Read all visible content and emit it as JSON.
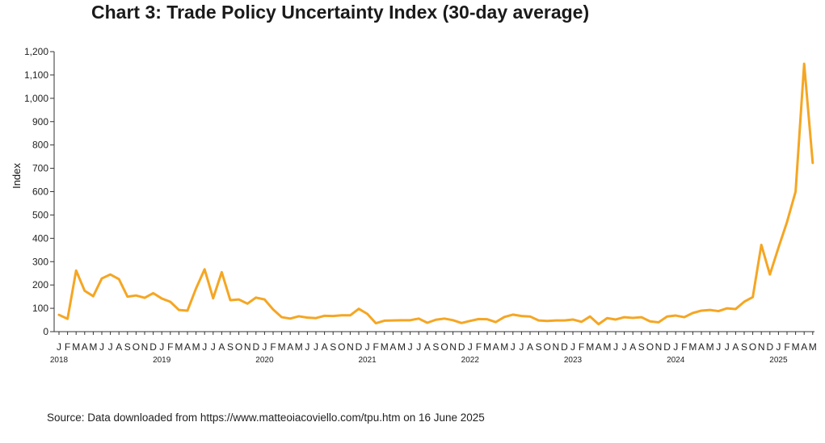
{
  "title": "Chart 3: Trade Policy Uncertainty Index (30-day average)",
  "source": "Source: Data downloaded from https://www.matteoiacoviello.com/tpu.htm on 16 June 2025",
  "chart_data": {
    "type": "line",
    "title": "Chart 3: Trade Policy Uncertainty Index (30-day average)",
    "xlabel": "",
    "ylabel": "Index",
    "ylim": [
      0,
      1200
    ],
    "yticks": [
      0,
      100,
      200,
      300,
      400,
      500,
      600,
      700,
      800,
      900,
      1000,
      1100,
      1200
    ],
    "ytick_labels": [
      "0",
      "100",
      "200",
      "300",
      "400",
      "500",
      "600",
      "700",
      "800",
      "900",
      "1,000",
      "1,100",
      "1,200"
    ],
    "grid": false,
    "line_color": "#F5A623",
    "month_letters": [
      "J",
      "F",
      "M",
      "A",
      "M",
      "J",
      "J",
      "A",
      "S",
      "O",
      "N",
      "D"
    ],
    "year_labels": [
      "2018",
      "2019",
      "2020",
      "2021",
      "2022",
      "2023",
      "2024",
      "2025"
    ],
    "x": [
      "2018-01",
      "2018-02",
      "2018-03",
      "2018-04",
      "2018-05",
      "2018-06",
      "2018-07",
      "2018-08",
      "2018-09",
      "2018-10",
      "2018-11",
      "2018-12",
      "2019-01",
      "2019-02",
      "2019-03",
      "2019-04",
      "2019-05",
      "2019-06",
      "2019-07",
      "2019-08",
      "2019-09",
      "2019-10",
      "2019-11",
      "2019-12",
      "2020-01",
      "2020-02",
      "2020-03",
      "2020-04",
      "2020-05",
      "2020-06",
      "2020-07",
      "2020-08",
      "2020-09",
      "2020-10",
      "2020-11",
      "2020-12",
      "2021-01",
      "2021-02",
      "2021-03",
      "2021-04",
      "2021-05",
      "2021-06",
      "2021-07",
      "2021-08",
      "2021-09",
      "2021-10",
      "2021-11",
      "2021-12",
      "2022-01",
      "2022-02",
      "2022-03",
      "2022-04",
      "2022-05",
      "2022-06",
      "2022-07",
      "2022-08",
      "2022-09",
      "2022-10",
      "2022-11",
      "2022-12",
      "2023-01",
      "2023-02",
      "2023-03",
      "2023-04",
      "2023-05",
      "2023-06",
      "2023-07",
      "2023-08",
      "2023-09",
      "2023-10",
      "2023-11",
      "2023-12",
      "2024-01",
      "2024-02",
      "2024-03",
      "2024-04",
      "2024-05",
      "2024-06",
      "2024-07",
      "2024-08",
      "2024-09",
      "2024-10",
      "2024-11",
      "2024-12",
      "2025-01",
      "2025-02",
      "2025-03",
      "2025-04",
      "2025-05"
    ],
    "series": [
      {
        "values": [
          72,
          55,
          262,
          175,
          152,
          228,
          245,
          225,
          150,
          155,
          145,
          165,
          142,
          128,
          93,
          90,
          185,
          267,
          143,
          255,
          135,
          138,
          120,
          146,
          138,
          95,
          62,
          56,
          66,
          60,
          58,
          68,
          67,
          70,
          70,
          98,
          76,
          36,
          47,
          48,
          49,
          49,
          56,
          38,
          51,
          56,
          49,
          37,
          46,
          54,
          53,
          41,
          63,
          73,
          67,
          65,
          48,
          46,
          48,
          48,
          52,
          42,
          65,
          32,
          58,
          52,
          62,
          59,
          62,
          44,
          40,
          65,
          69,
          62,
          80,
          90,
          93,
          88,
          100,
          97,
          128,
          148,
          372,
          245,
          360,
          470,
          600,
          1148,
          723
        ]
      }
    ]
  }
}
